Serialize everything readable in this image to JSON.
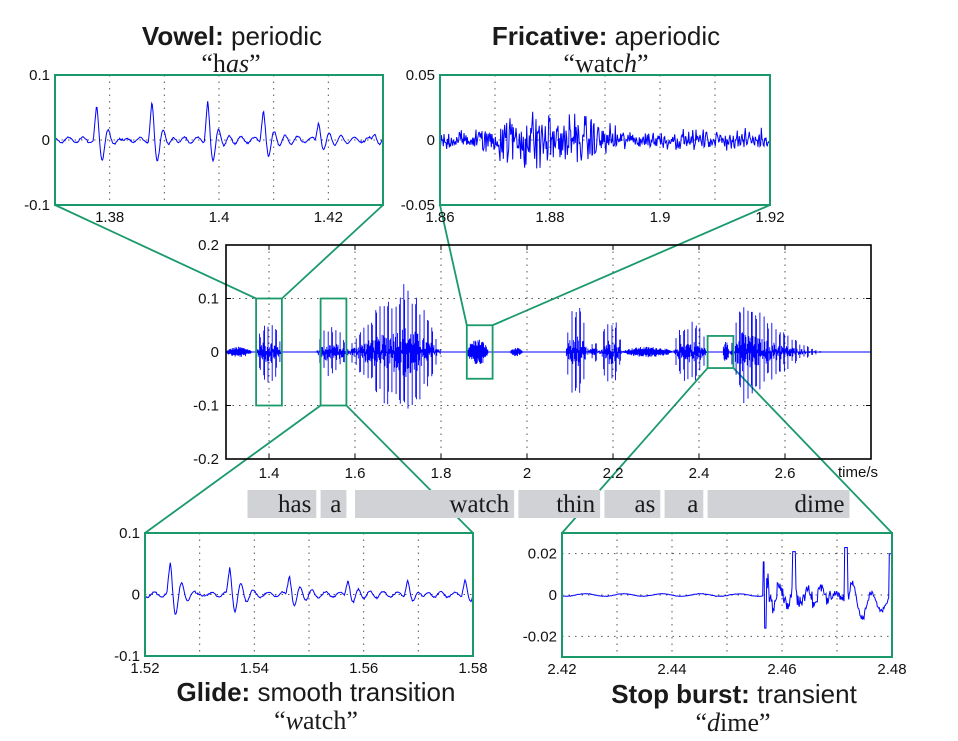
{
  "colors": {
    "signal": "#0000ff",
    "zoom_box": "#1a9a6a",
    "axis": "#000000",
    "grid": "#555555",
    "word_bar": "#d1d2d6"
  },
  "chart_data": [
    {
      "id": "main",
      "type": "line",
      "title": "",
      "xlabel": "time/s",
      "ylabel": "",
      "xlim": [
        1.3,
        2.8
      ],
      "ylim": [
        -0.2,
        0.2
      ],
      "grid": true,
      "x_ticks": [
        "1.4",
        "1.6",
        "1.8",
        "2",
        "2.2",
        "2.4",
        "2.6"
      ],
      "x_tick_values": [
        1.4,
        1.6,
        1.8,
        2.0,
        2.2,
        2.4,
        2.6
      ],
      "y_ticks": [
        "0.2",
        "0.1",
        "0",
        "-0.1",
        "-0.2"
      ],
      "y_tick_values": [
        0.2,
        0.1,
        0,
        -0.1,
        -0.2
      ],
      "segments": [
        {
          "start": 1.3,
          "end": 1.36,
          "amp": 0.01,
          "kind": "noise"
        },
        {
          "start": 1.37,
          "end": 1.43,
          "amp": 0.06,
          "kind": "voiced"
        },
        {
          "start": 1.51,
          "end": 1.58,
          "amp": 0.05,
          "kind": "voiced"
        },
        {
          "start": 1.58,
          "end": 1.8,
          "amp": 0.14,
          "kind": "voiced-peak",
          "peak": 1.72
        },
        {
          "start": 1.86,
          "end": 1.91,
          "amp": 0.025,
          "kind": "noise"
        },
        {
          "start": 1.96,
          "end": 1.99,
          "amp": 0.008,
          "kind": "noise"
        },
        {
          "start": 2.09,
          "end": 2.14,
          "amp": 0.09,
          "kind": "voiced"
        },
        {
          "start": 2.14,
          "end": 2.17,
          "amp": 0.02,
          "kind": "voiced"
        },
        {
          "start": 2.17,
          "end": 2.22,
          "amp": 0.07,
          "kind": "voiced"
        },
        {
          "start": 2.22,
          "end": 2.34,
          "amp": 0.01,
          "kind": "noise"
        },
        {
          "start": 2.34,
          "end": 2.42,
          "amp": 0.06,
          "kind": "voiced"
        },
        {
          "start": 2.455,
          "end": 2.47,
          "amp": 0.02,
          "kind": "noise"
        },
        {
          "start": 2.47,
          "end": 2.7,
          "amp": 0.11,
          "kind": "voiced-decay",
          "peak": 2.5
        }
      ],
      "zoom_boxes": [
        {
          "name": "vowel",
          "x": [
            1.37,
            1.43
          ],
          "y": [
            -0.1,
            0.1
          ]
        },
        {
          "name": "glide",
          "x": [
            1.52,
            1.58
          ],
          "y": [
            -0.1,
            0.1
          ]
        },
        {
          "name": "fricative",
          "x": [
            1.86,
            1.92
          ],
          "y": [
            -0.05,
            0.05
          ]
        },
        {
          "name": "stop",
          "x": [
            2.42,
            2.48
          ],
          "y": [
            -0.03,
            0.03
          ]
        }
      ],
      "words": [
        {
          "text": "has",
          "start": 1.35,
          "end": 1.51
        },
        {
          "text": "a",
          "start": 1.52,
          "end": 1.58
        },
        {
          "text": "watch",
          "start": 1.6,
          "end": 1.97
        },
        {
          "text": "thin",
          "start": 1.98,
          "end": 2.17
        },
        {
          "text": "as",
          "start": 2.18,
          "end": 2.31
        },
        {
          "text": "a",
          "start": 2.32,
          "end": 2.41
        },
        {
          "text": "dime",
          "start": 2.42,
          "end": 2.75
        }
      ]
    },
    {
      "id": "vowel",
      "type": "line",
      "title_bold": "Vowel:",
      "title_rest": " periodic",
      "quote_open": "“h",
      "quote_italic": "as",
      "quote_close": "”",
      "xlim": [
        1.37,
        1.43
      ],
      "ylim": [
        -0.1,
        0.1
      ],
      "x_ticks": [
        "1.38",
        "1.4",
        "1.42"
      ],
      "x_tick_values": [
        1.38,
        1.4,
        1.42
      ],
      "y_ticks": [
        "0.1",
        "0",
        "-0.1"
      ],
      "y_tick_values": [
        0.1,
        0,
        -0.1
      ],
      "grid_x": [
        1.38,
        1.39,
        1.4,
        1.41,
        1.42
      ],
      "pulses": [
        1.3776,
        1.3877,
        1.3979,
        1.4081,
        1.4182,
        1.4285
      ],
      "pulse_amps": [
        0.05,
        0.058,
        0.062,
        0.05,
        0.03,
        0.012
      ],
      "signal_type": "periodic"
    },
    {
      "id": "fricative",
      "type": "line",
      "title_bold": "Fricative:",
      "title_rest": " aperiodic",
      "quote_open": "“watc",
      "quote_italic": "h",
      "quote_close": "”",
      "xlim": [
        1.86,
        1.92
      ],
      "ylim": [
        -0.05,
        0.05
      ],
      "x_ticks": [
        "1.86",
        "1.88",
        "1.9",
        "1.92"
      ],
      "x_tick_values": [
        1.86,
        1.88,
        1.9,
        1.92
      ],
      "y_ticks": [
        "0.05",
        "0",
        "-0.05"
      ],
      "y_tick_values": [
        0.05,
        0,
        -0.05
      ],
      "grid_x": [
        1.87,
        1.88,
        1.89,
        1.9,
        1.91
      ],
      "signal_type": "noise",
      "envelope_peak": 1.877,
      "envelope_amp": 0.025,
      "base_amp": 0.008
    },
    {
      "id": "glide",
      "type": "line",
      "title_bold": "Glide:",
      "title_rest": " smooth transition",
      "quote_open": "“",
      "quote_italic": "w",
      "quote_close": "atch”",
      "xlim": [
        1.52,
        1.58
      ],
      "ylim": [
        -0.1,
        0.1
      ],
      "x_ticks": [
        "1.52",
        "1.54",
        "1.56",
        "1.58"
      ],
      "x_tick_values": [
        1.52,
        1.54,
        1.56,
        1.58
      ],
      "y_ticks": [
        "0.1",
        "0",
        "-0.1"
      ],
      "y_tick_values": [
        0.1,
        0,
        -0.1
      ],
      "grid_x": [
        1.53,
        1.54,
        1.55,
        1.56,
        1.57
      ],
      "pulses": [
        1.5246,
        1.5355,
        1.5464,
        1.5571,
        1.568,
        1.5785
      ],
      "pulse_amps": [
        0.05,
        0.044,
        0.034,
        0.027,
        0.025,
        0.025
      ],
      "signal_type": "periodic"
    },
    {
      "id": "stop",
      "type": "line",
      "title_bold": "Stop burst:",
      "title_rest": " transient",
      "quote_open": "“",
      "quote_italic": "d",
      "quote_close": "ime”",
      "xlim": [
        2.42,
        2.48
      ],
      "ylim": [
        -0.03,
        0.03
      ],
      "x_ticks": [
        "2.42",
        "2.44",
        "2.46",
        "2.48"
      ],
      "x_tick_values": [
        2.42,
        2.44,
        2.46,
        2.48
      ],
      "y_ticks": [
        "0.02",
        "0",
        "-0.02"
      ],
      "y_tick_values": [
        0.02,
        0,
        -0.02
      ],
      "grid_x": [
        2.43,
        2.44,
        2.45,
        2.46,
        2.47
      ],
      "grid_y": [
        0.02,
        0,
        -0.02
      ],
      "burst_start": 2.4565,
      "signal_type": "transient"
    }
  ]
}
